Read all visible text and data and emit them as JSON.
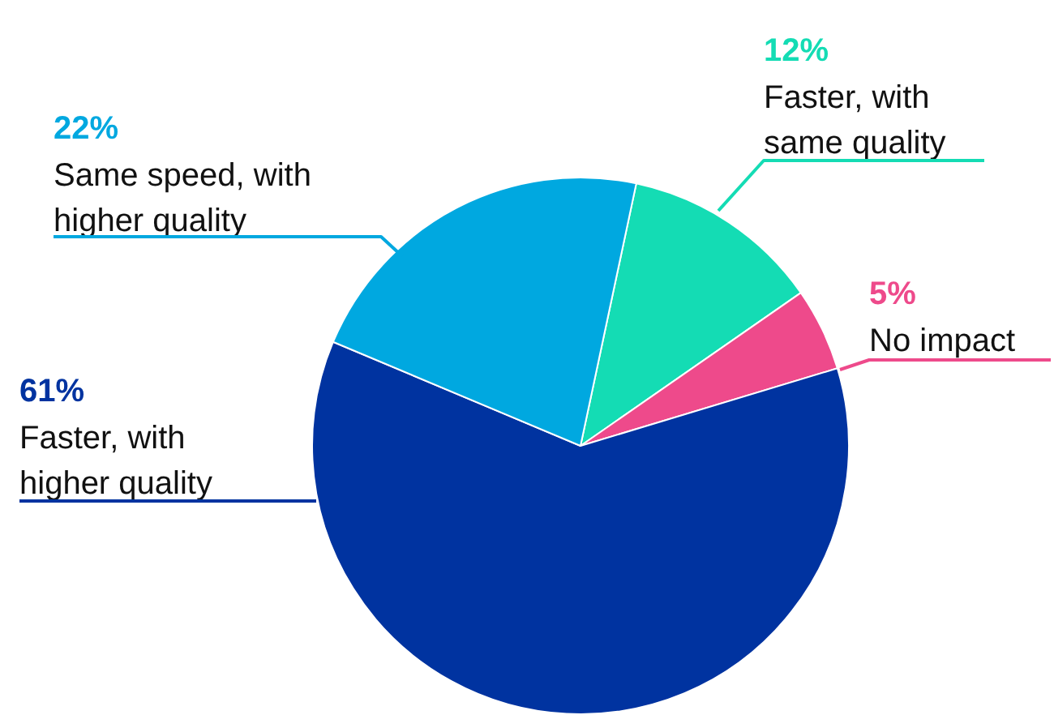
{
  "chart_data": {
    "type": "pie",
    "categories": [
      "Faster, with same quality",
      "No impact",
      "Faster, with higher quality",
      "Same speed, with higher quality"
    ],
    "values": [
      12,
      5,
      61,
      22
    ],
    "colors": [
      "#14dcb4",
      "#ee4a8b",
      "#0033a0",
      "#00a8e0"
    ],
    "value_labels": [
      "12%",
      "5%",
      "61%",
      "22%"
    ],
    "legend": false
  }
}
